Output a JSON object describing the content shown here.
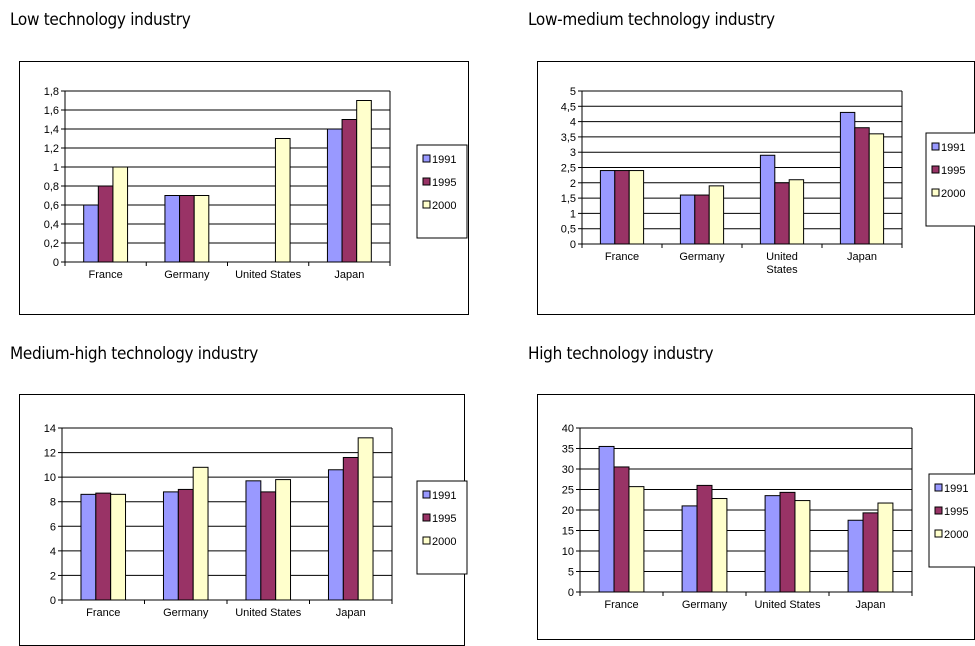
{
  "colors": {
    "s1991": "#9999ff",
    "s1995": "#993366",
    "s2000": "#ffffcc"
  },
  "chart_data": [
    {
      "type": "bar",
      "title": "Low technology industry",
      "categories": [
        [
          "France"
        ],
        [
          "Germany"
        ],
        [
          "United States"
        ],
        [
          "Japan"
        ]
      ],
      "series": [
        {
          "name": "1991",
          "values": [
            0.6,
            0.7,
            null,
            1.4
          ]
        },
        {
          "name": "1995",
          "values": [
            0.8,
            0.7,
            null,
            1.5
          ]
        },
        {
          "name": "2000",
          "values": [
            1.0,
            0.7,
            1.3,
            1.7
          ]
        }
      ],
      "yticks": [
        "0",
        "0,2",
        "0,4",
        "0,6",
        "0,8",
        "1",
        "1,2",
        "1,4",
        "1,6",
        "1,8"
      ],
      "ylim": [
        0,
        1.8
      ],
      "grid": true,
      "legend": "right"
    },
    {
      "type": "bar",
      "title": "Low-medium technology industry",
      "categories": [
        [
          "France"
        ],
        [
          "Germany"
        ],
        [
          "United",
          "States"
        ],
        [
          "Japan"
        ]
      ],
      "series": [
        {
          "name": "1991",
          "values": [
            2.4,
            1.6,
            2.9,
            4.3
          ]
        },
        {
          "name": "1995",
          "values": [
            2.4,
            1.6,
            2.0,
            3.8
          ]
        },
        {
          "name": "2000",
          "values": [
            2.4,
            1.9,
            2.1,
            3.6
          ]
        }
      ],
      "yticks": [
        "0",
        "0,5",
        "1",
        "1,5",
        "2",
        "2,5",
        "3",
        "3,5",
        "4",
        "4,5",
        "5"
      ],
      "ylim": [
        0,
        5
      ],
      "grid": true,
      "legend": "right"
    },
    {
      "type": "bar",
      "title": "Medium-high technology industry",
      "categories": [
        [
          "France"
        ],
        [
          "Germany"
        ],
        [
          "United States"
        ],
        [
          "Japan"
        ]
      ],
      "series": [
        {
          "name": "1991",
          "values": [
            8.6,
            8.8,
            9.7,
            10.6
          ]
        },
        {
          "name": "1995",
          "values": [
            8.7,
            9.0,
            8.8,
            11.6
          ]
        },
        {
          "name": "2000",
          "values": [
            8.6,
            10.8,
            9.8,
            13.2
          ]
        }
      ],
      "yticks": [
        "0",
        "2",
        "4",
        "6",
        "8",
        "10",
        "12",
        "14"
      ],
      "ylim": [
        0,
        14
      ],
      "grid": true,
      "legend": "right"
    },
    {
      "type": "bar",
      "title": "High technology industry",
      "categories": [
        [
          "France"
        ],
        [
          "Germany"
        ],
        [
          "United States"
        ],
        [
          "Japan"
        ]
      ],
      "series": [
        {
          "name": "1991",
          "values": [
            35.5,
            21.0,
            23.5,
            17.5
          ]
        },
        {
          "name": "1995",
          "values": [
            30.5,
            26.0,
            24.3,
            19.3
          ]
        },
        {
          "name": "2000",
          "values": [
            25.7,
            22.8,
            22.3,
            21.7
          ]
        }
      ],
      "yticks": [
        "0",
        "5",
        "10",
        "15",
        "20",
        "25",
        "30",
        "35",
        "40"
      ],
      "ylim": [
        0,
        40
      ],
      "grid": true,
      "legend": "right"
    }
  ]
}
